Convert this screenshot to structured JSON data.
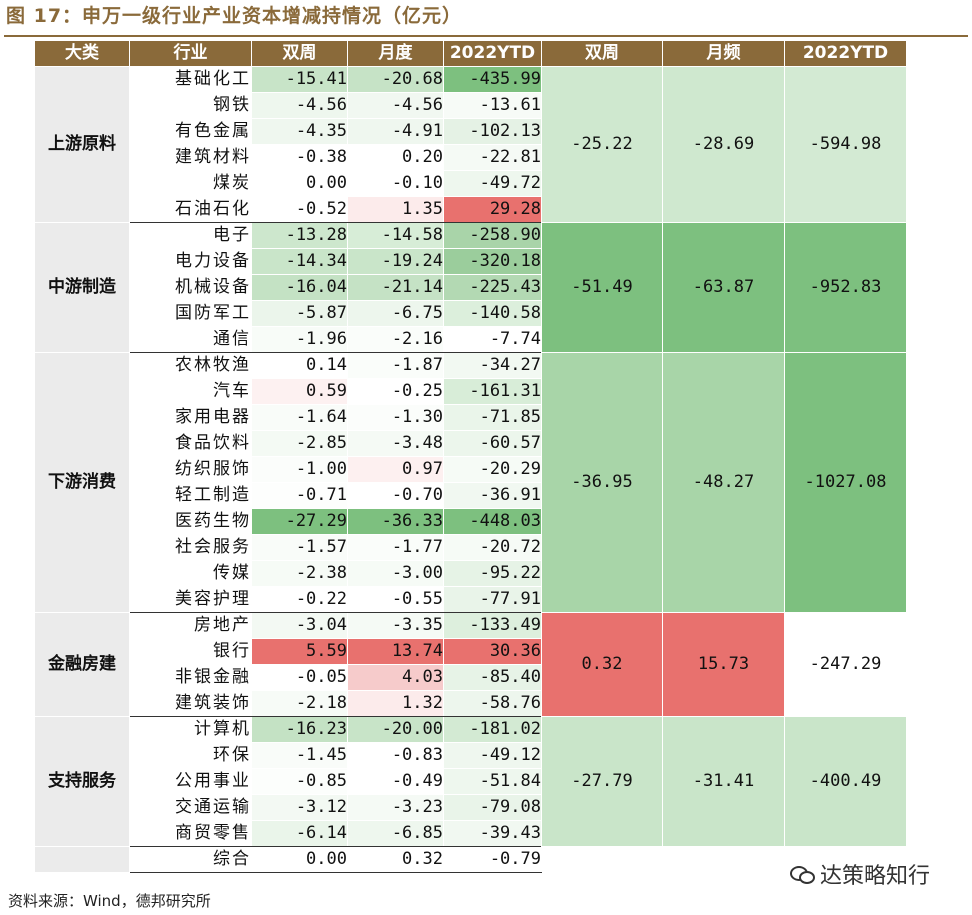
{
  "title": "图 17：申万一级行业产业资本增减持情况（亿元）",
  "headers": [
    "大类",
    "行业",
    "双周",
    "月度",
    "2022YTD",
    "双周",
    "月频",
    "2022YTD"
  ],
  "colors": {
    "brown": "#8a6a3a",
    "neg_strong": "#7bbf7f",
    "neg_mid": "#a8d5a8",
    "neg_light": "#d3ead3",
    "neg_faint": "#edf6ed",
    "pos_strong": "#e8716e",
    "pos_light": "#f6caca",
    "pos_faint": "#fbe6e6"
  },
  "groups": [
    {
      "name": "上游原料",
      "agg": [
        "-25.22",
        "-28.69",
        "-594.98"
      ],
      "agg_colors": [
        "#cfe8cf",
        "#cfe8cf",
        "#d3ead3"
      ],
      "rows": [
        {
          "industry": "基础化工",
          "values": [
            "-15.41",
            "-20.68",
            "-435.99"
          ],
          "colors": [
            "#c8e4c8",
            "#c6e3c6",
            "#7dc07f"
          ]
        },
        {
          "industry": "钢铁",
          "values": [
            "-4.56",
            "-4.56",
            "-13.61"
          ],
          "colors": [
            "#eef7ee",
            "#f1f8f1",
            "#f7fbf7"
          ]
        },
        {
          "industry": "有色金属",
          "values": [
            "-4.35",
            "-4.91",
            "-102.13"
          ],
          "colors": [
            "#eff7ef",
            "#eff7ef",
            "#e5f2e5"
          ]
        },
        {
          "industry": "建筑材料",
          "values": [
            "-0.38",
            "0.20",
            "-22.81"
          ],
          "colors": [
            "#ffffff",
            "#ffffff",
            "#f5faf5"
          ]
        },
        {
          "industry": "煤炭",
          "values": [
            "0.00",
            "-0.10",
            "-49.72"
          ],
          "colors": [
            "#ffffff",
            "#ffffff",
            "#eef7ee"
          ]
        },
        {
          "industry": "石油石化",
          "values": [
            "-0.52",
            "1.35",
            "29.28"
          ],
          "colors": [
            "#ffffff",
            "#fcebeb",
            "#e8716e"
          ]
        }
      ]
    },
    {
      "name": "中游制造",
      "agg": [
        "-51.49",
        "-63.87",
        "-952.83"
      ],
      "agg_colors": [
        "#7dc07f",
        "#7dc07f",
        "#7dc07f"
      ],
      "rows": [
        {
          "industry": "电子",
          "values": [
            "-13.28",
            "-14.58",
            "-258.90"
          ],
          "colors": [
            "#cde7cd",
            "#d7edd7",
            "#a9d4a9"
          ]
        },
        {
          "industry": "电力设备",
          "values": [
            "-14.34",
            "-19.24",
            "-320.18"
          ],
          "colors": [
            "#c9e5c9",
            "#c9e5c9",
            "#9bcd9c"
          ]
        },
        {
          "industry": "机械设备",
          "values": [
            "-16.04",
            "-21.14",
            "-225.43"
          ],
          "colors": [
            "#c4e2c4",
            "#c5e2c5",
            "#b3d9b3"
          ]
        },
        {
          "industry": "国防军工",
          "values": [
            "-5.87",
            "-6.75",
            "-140.58"
          ],
          "colors": [
            "#ebf5eb",
            "#edf6ed",
            "#dcefdc"
          ]
        },
        {
          "industry": "通信",
          "values": [
            "-1.96",
            "-2.16",
            "-7.74"
          ],
          "colors": [
            "#f8fcf8",
            "#fafdfa",
            "#ffffff"
          ]
        }
      ]
    },
    {
      "name": "下游消费",
      "agg": [
        "-36.95",
        "-48.27",
        "-1027.08"
      ],
      "agg_colors": [
        "#a8d5a8",
        "#a8d5a8",
        "#7dc07f"
      ],
      "rows": [
        {
          "industry": "农林牧渔",
          "values": [
            "0.14",
            "-1.87",
            "-34.27"
          ],
          "colors": [
            "#ffffff",
            "#fafdfa",
            "#f2f9f2"
          ]
        },
        {
          "industry": "汽车",
          "values": [
            "0.59",
            "-0.25",
            "-161.31"
          ],
          "colors": [
            "#fdf1f1",
            "#ffffff",
            "#d8edd8"
          ]
        },
        {
          "industry": "家用电器",
          "values": [
            "-1.64",
            "-1.30",
            "-71.85"
          ],
          "colors": [
            "#f9fcf9",
            "#fbfdfb",
            "#eaf5ea"
          ]
        },
        {
          "industry": "食品饮料",
          "values": [
            "-2.85",
            "-3.48",
            "-60.57"
          ],
          "colors": [
            "#f4faf4",
            "#f5faf5",
            "#ecf6ec"
          ]
        },
        {
          "industry": "纺织服饰",
          "values": [
            "-1.00",
            "0.97",
            "-20.29"
          ],
          "colors": [
            "#fbfdfb",
            "#fdf0f0",
            "#f6fbf6"
          ]
        },
        {
          "industry": "轻工制造",
          "values": [
            "-0.71",
            "-0.70",
            "-36.91"
          ],
          "colors": [
            "#fdfefd",
            "#ffffff",
            "#f1f8f1"
          ]
        },
        {
          "industry": "医药生物",
          "values": [
            "-27.29",
            "-36.33",
            "-448.03"
          ],
          "colors": [
            "#7dc07f",
            "#7dc07f",
            "#7dc07f"
          ]
        },
        {
          "industry": "社会服务",
          "values": [
            "-1.57",
            "-1.77",
            "-20.72"
          ],
          "colors": [
            "#f9fcf9",
            "#fafdfa",
            "#f6fbf6"
          ]
        },
        {
          "industry": "传媒",
          "values": [
            "-2.38",
            "-3.00",
            "-95.22"
          ],
          "colors": [
            "#f6fbf6",
            "#f6fbf6",
            "#e6f3e6"
          ]
        },
        {
          "industry": "美容护理",
          "values": [
            "-0.22",
            "-0.55",
            "-77.91"
          ],
          "colors": [
            "#ffffff",
            "#ffffff",
            "#e9f4e9"
          ]
        }
      ]
    },
    {
      "name": "金融房建",
      "agg": [
        "0.32",
        "15.73",
        "-247.29"
      ],
      "agg_colors": [
        "#e8716e",
        "#e8716e",
        "#ffffff"
      ],
      "rows": [
        {
          "industry": "房地产",
          "values": [
            "-3.04",
            "-3.35",
            "-133.49"
          ],
          "colors": [
            "#f3f9f3",
            "#f5faf5",
            "#ddefdd"
          ]
        },
        {
          "industry": "银行",
          "values": [
            "5.59",
            "13.74",
            "30.36"
          ],
          "colors": [
            "#e8716e",
            "#e8716e",
            "#e8716e"
          ]
        },
        {
          "industry": "非银金融",
          "values": [
            "-0.05",
            "4.03",
            "-85.40"
          ],
          "colors": [
            "#ffffff",
            "#f6cbcb",
            "#e7f3e7"
          ]
        },
        {
          "industry": "建筑装饰",
          "values": [
            "-2.18",
            "1.32",
            "-58.76"
          ],
          "colors": [
            "#f7fbf7",
            "#fcebeb",
            "#edf6ed"
          ]
        }
      ]
    },
    {
      "name": "支持服务",
      "agg": [
        "-27.79",
        "-31.41",
        "-400.49"
      ],
      "agg_colors": [
        "#c9e5c9",
        "#c9e5c9",
        "#c9e5c9"
      ],
      "rows": [
        {
          "industry": "计算机",
          "values": [
            "-16.23",
            "-20.00",
            "-181.02"
          ],
          "colors": [
            "#c4e2c4",
            "#c8e4c8",
            "#d3ead3"
          ]
        },
        {
          "industry": "环保",
          "values": [
            "-1.45",
            "-0.83",
            "-49.12"
          ],
          "colors": [
            "#f9fcf9",
            "#ffffff",
            "#eff7ef"
          ]
        },
        {
          "industry": "公用事业",
          "values": [
            "-0.85",
            "-0.49",
            "-51.84"
          ],
          "colors": [
            "#fcfefc",
            "#ffffff",
            "#eef7ee"
          ]
        },
        {
          "industry": "交通运输",
          "values": [
            "-3.12",
            "-3.23",
            "-79.08"
          ],
          "colors": [
            "#f3f9f3",
            "#f5faf5",
            "#e9f4e9"
          ]
        },
        {
          "industry": "商贸零售",
          "values": [
            "-6.14",
            "-6.85",
            "-39.43"
          ],
          "colors": [
            "#eaf5ea",
            "#eef7ee",
            "#f1f8f1"
          ]
        }
      ]
    },
    {
      "name": "",
      "agg": [],
      "agg_colors": [],
      "rows": [
        {
          "industry": "综合",
          "values": [
            "0.00",
            "0.32",
            "-0.79"
          ],
          "colors": [
            "#ffffff",
            "#ffffff",
            "#ffffff"
          ]
        }
      ]
    }
  ],
  "footer": "资料来源：Wind，德邦研究所",
  "watermark": "达策略知行",
  "watermark_icon": "wechat-icon"
}
